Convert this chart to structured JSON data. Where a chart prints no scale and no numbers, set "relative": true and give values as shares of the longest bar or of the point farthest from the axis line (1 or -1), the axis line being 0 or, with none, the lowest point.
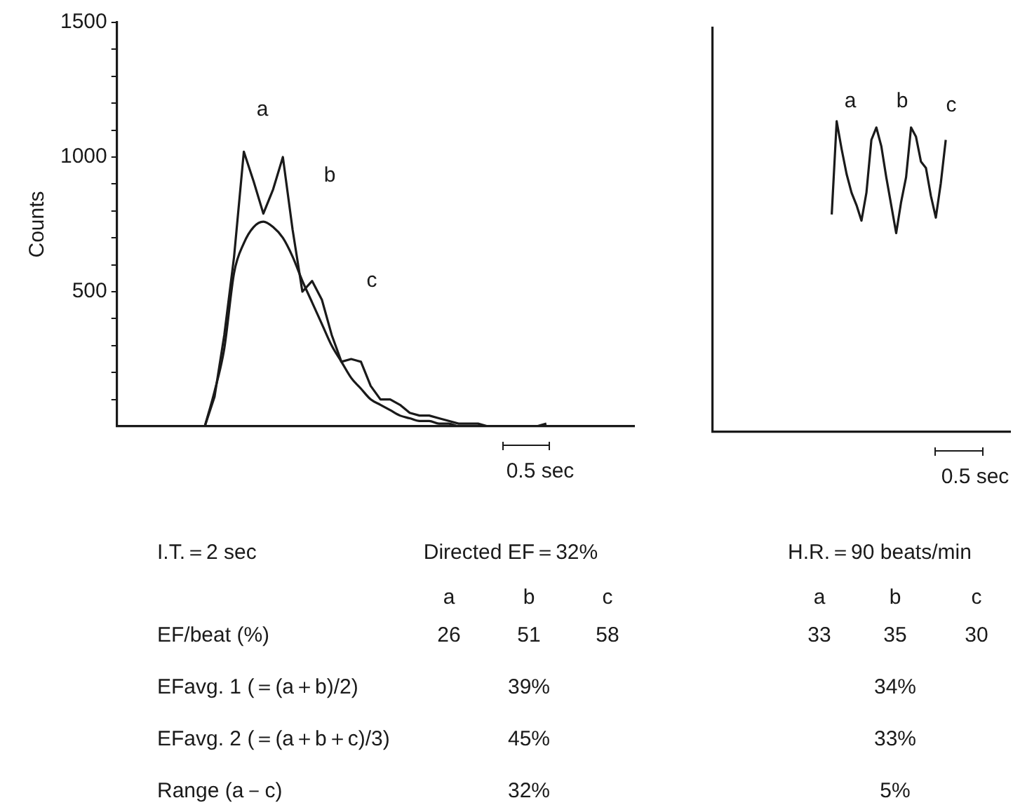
{
  "chart_data": [
    {
      "type": "line",
      "ylabel": "Counts",
      "categories": [
        null,
        null,
        null,
        null,
        null,
        null,
        null,
        null,
        null,
        null,
        null,
        null,
        null,
        null,
        null,
        null,
        null,
        null,
        null,
        null,
        null,
        null,
        null,
        null,
        null,
        null,
        null,
        null,
        null,
        null,
        null,
        null,
        null,
        null,
        null,
        null,
        null,
        null,
        null,
        null,
        null,
        null,
        null,
        null,
        null,
        null,
        null,
        null,
        null,
        null,
        null,
        null,
        null,
        null
      ],
      "series": [
        {
          "color": "#1a1a1a",
          "values": [
            0,
            0,
            0,
            0,
            0,
            0,
            0,
            0,
            0,
            0,
            110,
            340,
            630,
            1020,
            910,
            790,
            880,
            1000,
            730,
            500,
            540,
            470,
            340,
            240,
            250,
            240,
            150,
            100,
            100,
            80,
            50,
            40,
            40,
            30,
            20,
            10,
            10,
            10,
            0,
            0,
            0,
            0,
            0,
            0,
            10,
            null,
            null,
            null,
            null,
            null,
            null,
            null,
            null,
            null
          ]
        },
        {
          "color": "#1a1a1a",
          "values": [
            null,
            null,
            null,
            null,
            null,
            null,
            null,
            null,
            null,
            0,
            130,
            290,
            570,
            680,
            740,
            760,
            740,
            700,
            630,
            540,
            460,
            380,
            300,
            240,
            180,
            140,
            100,
            80,
            60,
            40,
            30,
            20,
            20,
            10,
            10,
            0,
            0,
            0,
            0,
            0,
            0,
            0,
            0,
            0,
            0,
            null,
            null,
            null,
            null,
            null,
            null,
            null,
            null,
            null
          ]
        }
      ],
      "ylim": [
        0,
        1500
      ],
      "yticks": [
        {
          "value": 100,
          "label": null
        },
        {
          "value": 200,
          "label": null
        },
        {
          "value": 300,
          "label": null
        },
        {
          "value": 400,
          "label": null
        },
        500,
        {
          "value": 600,
          "label": null
        },
        {
          "value": 700,
          "label": null
        },
        {
          "value": 800,
          "label": null
        },
        {
          "value": 900,
          "label": null
        },
        1000,
        {
          "value": 1100,
          "label": null
        },
        {
          "value": 1200,
          "label": null
        },
        {
          "value": 1300,
          "label": null
        },
        {
          "value": 1400,
          "label": null
        },
        1500
      ],
      "grid": false,
      "legend": false,
      "marker": "none",
      "line_style": "solid",
      "annotations": [
        "a",
        "b",
        "c",
        "0.5 sec"
      ]
    },
    {
      "type": "line",
      "relative": true,
      "categories": [
        null,
        null,
        null,
        null,
        null,
        null,
        null,
        null,
        null,
        null,
        null,
        null,
        null,
        null,
        null,
        null,
        null,
        null,
        null,
        null,
        null,
        null,
        null,
        null,
        null,
        null,
        null,
        null,
        null,
        null,
        null,
        null,
        null,
        null,
        null,
        null,
        null,
        null,
        null,
        null,
        null,
        null,
        null,
        null,
        null,
        null,
        null,
        null,
        null,
        null,
        null,
        null,
        null,
        null,
        null,
        null,
        null,
        null,
        null,
        null,
        null
      ],
      "series": [
        {
          "color": "#1a1a1a",
          "values": [
            null,
            null,
            null,
            null,
            null,
            null,
            null,
            null,
            null,
            null,
            null,
            null,
            null,
            null,
            null,
            null,
            null,
            null,
            null,
            null,
            null,
            null,
            null,
            null,
            0.7,
            1,
            0.91,
            0.83,
            0.77,
            0.73,
            0.68,
            0.77,
            0.94,
            0.98,
            0.92,
            0.82,
            0.73,
            0.64,
            0.74,
            0.82,
            0.98,
            0.95,
            0.87,
            0.85,
            0.76,
            0.69,
            0.8,
            0.94,
            null,
            null,
            null,
            null,
            null,
            null,
            null,
            null,
            null,
            null,
            null,
            null,
            null
          ]
        }
      ],
      "grid": false,
      "legend": false,
      "marker": "none",
      "line_style": "solid",
      "annotations": [
        "a",
        "b",
        "c",
        "0.5 sec"
      ]
    },
    {
      "type": "other",
      "annotations": [
        "I.T.＝2 sec",
        "Directed EF＝32%",
        "H.R.＝90 beats/min",
        "a",
        "b",
        "c",
        "a",
        "b",
        "c",
        "EF/beat (%)",
        "26",
        "51",
        "58",
        "33",
        "35",
        "30",
        "EFavg. 1 (＝(a＋b)/2)",
        "39%",
        "34%",
        "EFavg. 2 (＝(a＋b＋c)/3)",
        "45%",
        "33%",
        "Range (a－c)",
        "32%",
        "5%"
      ]
    }
  ]
}
